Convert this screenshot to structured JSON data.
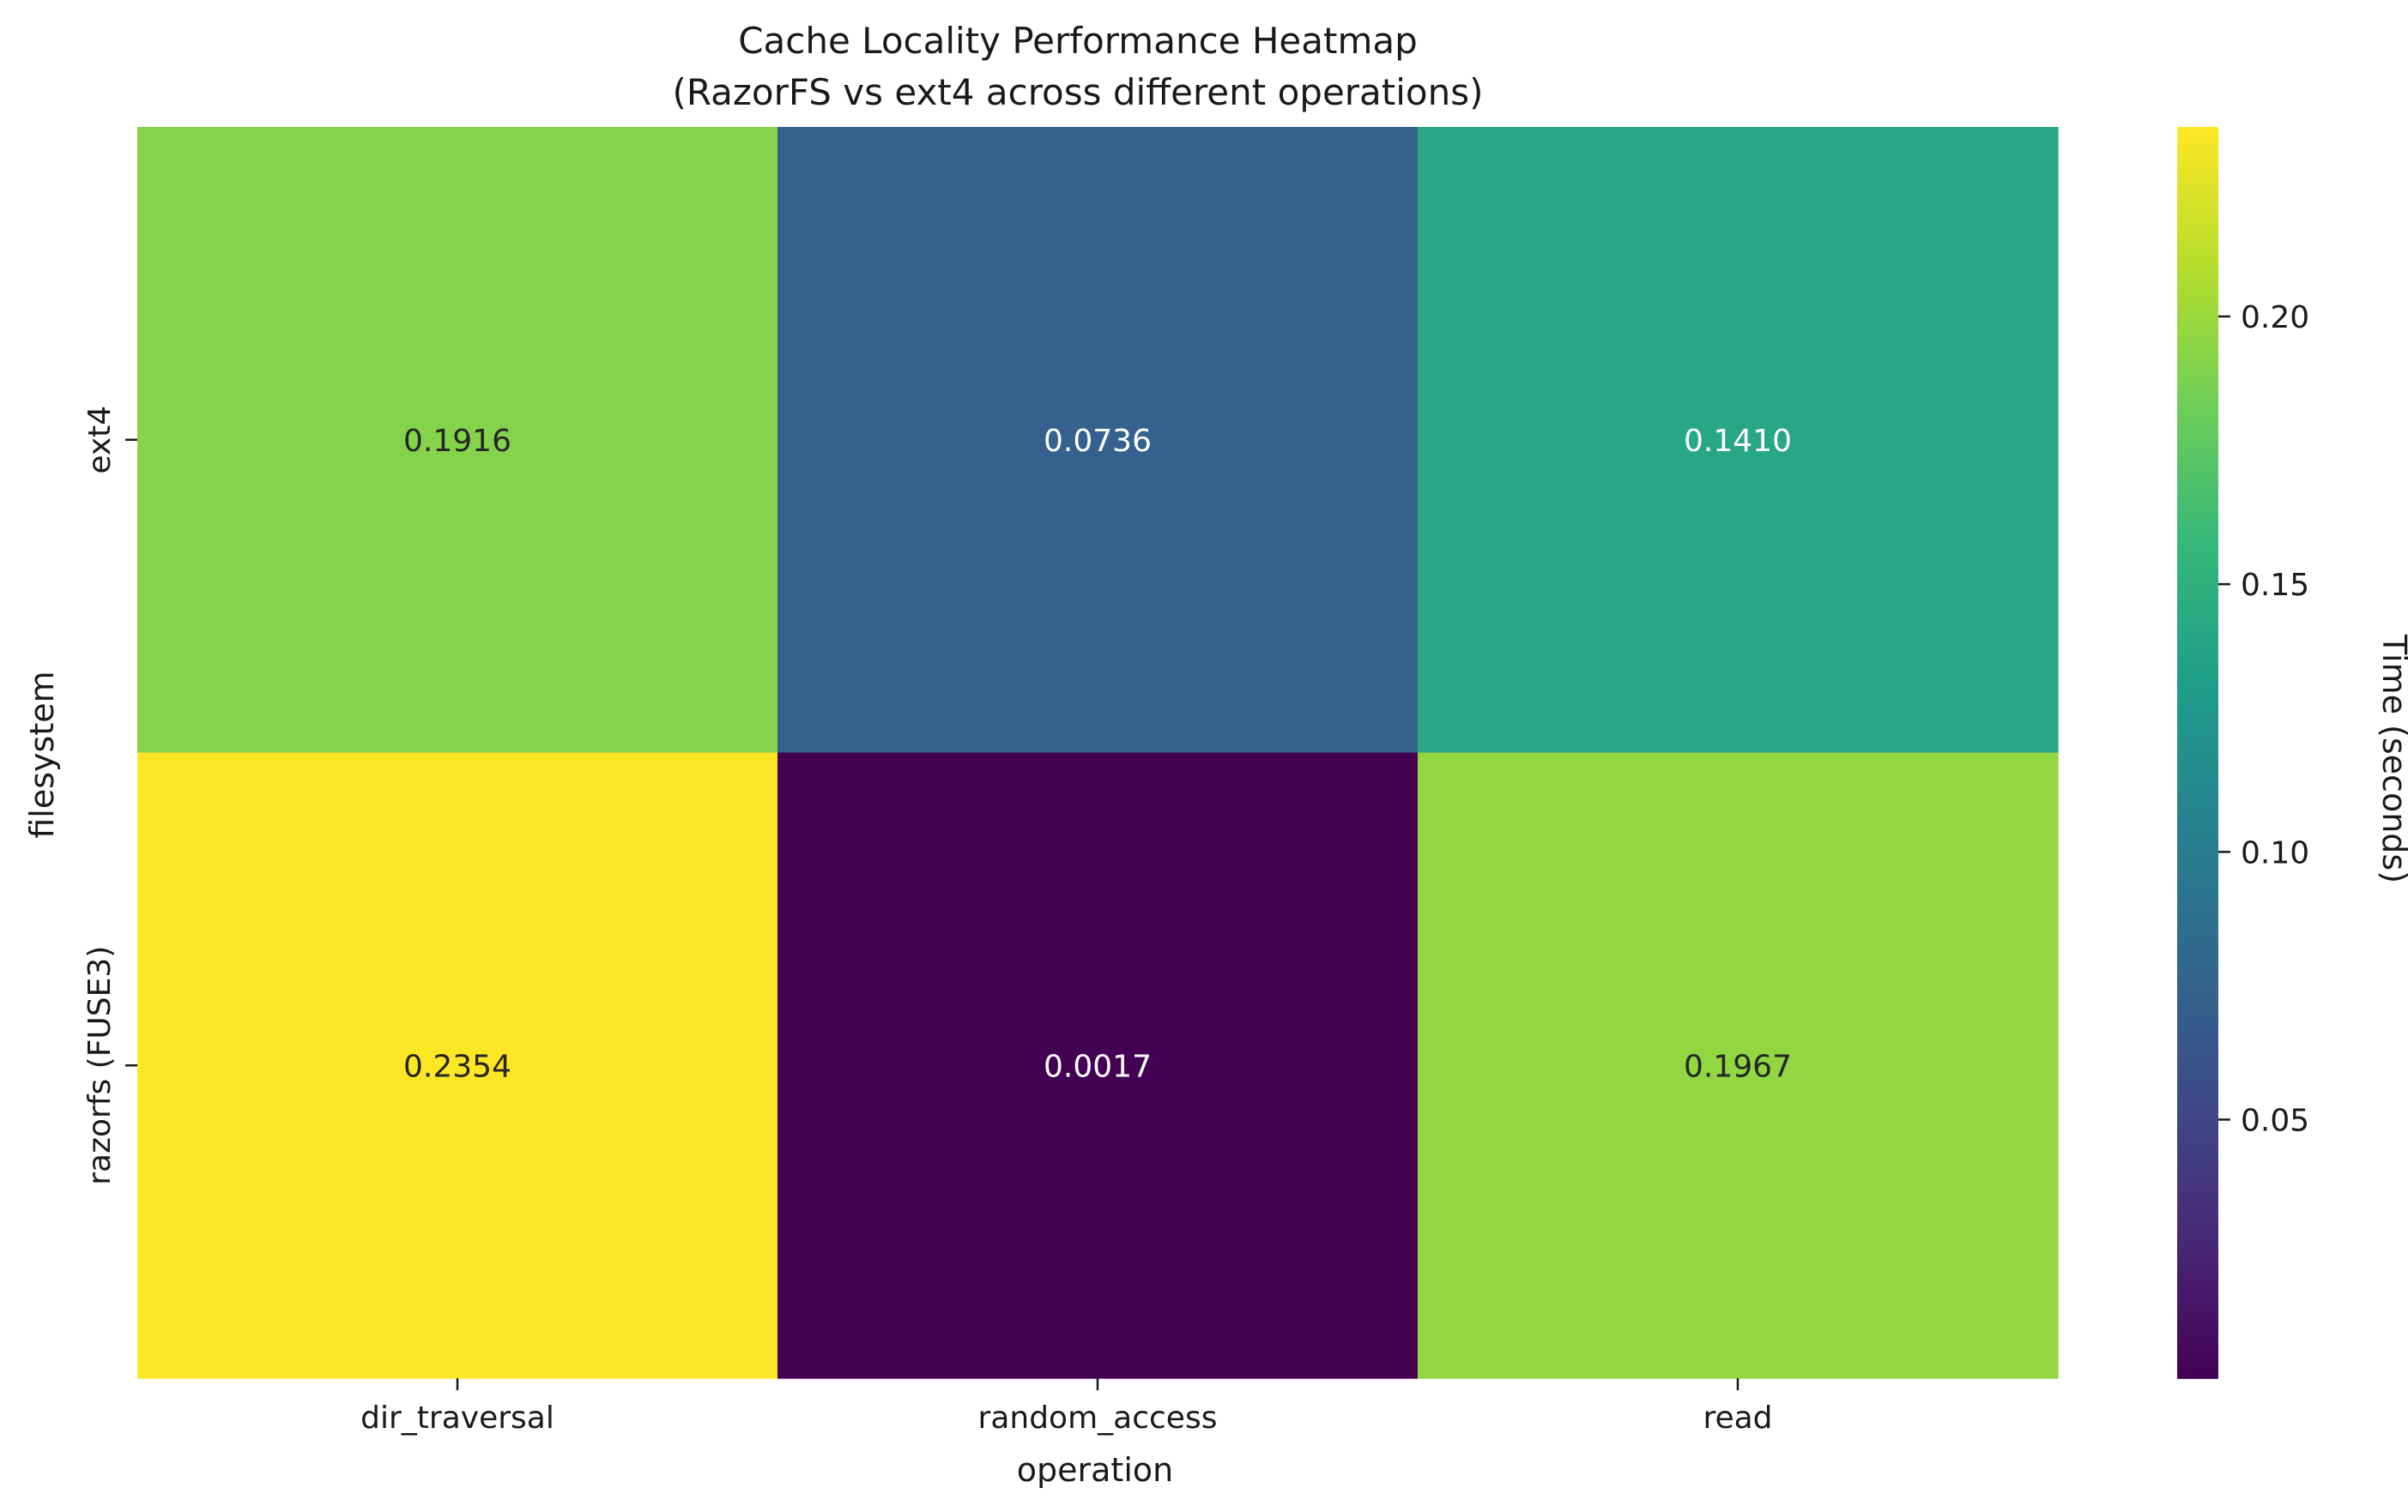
{
  "chart_data": {
    "type": "heatmap",
    "title": "Cache Locality Performance Heatmap",
    "subtitle": "(RazorFS vs ext4 across different operations)",
    "xlabel": "operation",
    "ylabel": "filesystem",
    "x_categories": [
      "dir_traversal",
      "random_access",
      "read"
    ],
    "y_categories": [
      "ext4",
      "razorfs (FUSE3)"
    ],
    "values": [
      [
        0.1916,
        0.0736,
        0.141
      ],
      [
        0.2354,
        0.0017,
        0.1967
      ]
    ],
    "cell_labels": [
      [
        "0.1916",
        "0.0736",
        "0.1410"
      ],
      [
        "0.2354",
        "0.0017",
        "0.1967"
      ]
    ],
    "colorscale": "viridis",
    "color_range": [
      0.0017,
      0.2354
    ],
    "colorbar": {
      "label": "Time (seconds)",
      "ticks": [
        0.05,
        0.1,
        0.15,
        0.2
      ],
      "tick_labels": [
        "0.05",
        "0.10",
        "0.15",
        "0.20"
      ]
    },
    "grid": false
  }
}
